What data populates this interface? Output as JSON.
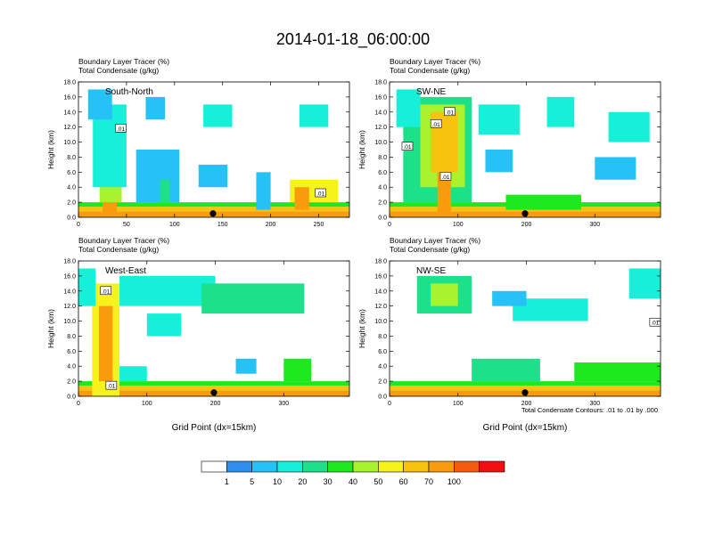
{
  "figure": {
    "title": "2014-01-18_06:00:00",
    "field_label": "Boundary Layer Tracer",
    "field_units": "(%)",
    "contour_label": "Total Condensate",
    "contour_units": "(g/kg)",
    "contour_note": "Total Condensate Contours: .01 to .01 by .000",
    "x_axis_label": "Grid Point (dx=15km)",
    "y_axis_label": "Height (km)"
  },
  "colorbar": {
    "labels": [
      "1",
      "5",
      "10",
      "20",
      "30",
      "40",
      "50",
      "60",
      "70",
      "100"
    ],
    "colors": [
      "#ffffff",
      "#2e8ff0",
      "#27c2f5",
      "#17f0d8",
      "#1ce08a",
      "#1ee81e",
      "#a8f32e",
      "#f5f21c",
      "#f7c30f",
      "#f89b0c",
      "#f55a0e",
      "#f01010"
    ]
  },
  "chart_data": [
    {
      "type": "heatmap",
      "panel": "South-North",
      "xlim": [
        0,
        282
      ],
      "xticks": [
        0,
        50,
        100,
        150,
        200,
        250
      ],
      "ylim": [
        0,
        18
      ],
      "yticks": [
        "0.0",
        "2.0",
        "4.0",
        "6.0",
        "8.0",
        "10.0",
        "12.0",
        "14.0",
        "16.0",
        "18.0"
      ],
      "marker_x": 140,
      "contour_labels": [
        {
          "text": ".01",
          "x": 44,
          "y": 11.8
        },
        {
          "text": ".01",
          "x": 252,
          "y": 3.2
        }
      ],
      "cells": [
        {
          "x": [
            0,
            282
          ],
          "y": [
            0,
            0.8
          ],
          "v": 95
        },
        {
          "x": [
            0,
            282
          ],
          "y": [
            0.8,
            1.4
          ],
          "v": 65
        },
        {
          "x": [
            0,
            282
          ],
          "y": [
            1.4,
            2.0
          ],
          "v": 35
        },
        {
          "x": [
            25,
            40
          ],
          "y": [
            0,
            9
          ],
          "v": 80
        },
        {
          "x": [
            22,
            45
          ],
          "y": [
            2,
            12
          ],
          "v": 40
        },
        {
          "x": [
            15,
            50
          ],
          "y": [
            4,
            15
          ],
          "v": 12
        },
        {
          "x": [
            10,
            35
          ],
          "y": [
            13,
            17
          ],
          "v": 6
        },
        {
          "x": [
            60,
            105
          ],
          "y": [
            2,
            9
          ],
          "v": 8
        },
        {
          "x": [
            85,
            95
          ],
          "y": [
            2,
            5
          ],
          "v": 25
        },
        {
          "x": [
            125,
            155
          ],
          "y": [
            4,
            7
          ],
          "v": 6
        },
        {
          "x": [
            185,
            200
          ],
          "y": [
            1,
            6
          ],
          "v": 8
        },
        {
          "x": [
            220,
            270
          ],
          "y": [
            2,
            5
          ],
          "v": 50
        },
        {
          "x": [
            225,
            240
          ],
          "y": [
            1,
            4
          ],
          "v": 75
        },
        {
          "x": [
            130,
            160
          ],
          "y": [
            12,
            15
          ],
          "v": 10
        },
        {
          "x": [
            230,
            260
          ],
          "y": [
            12,
            15
          ],
          "v": 12
        },
        {
          "x": [
            70,
            90
          ],
          "y": [
            13,
            16
          ],
          "v": 8
        }
      ]
    },
    {
      "type": "heatmap",
      "panel": "SW-NE",
      "xlim": [
        0,
        396
      ],
      "xticks": [
        0,
        100,
        200,
        300
      ],
      "ylim": [
        0,
        18
      ],
      "yticks": [
        "0.0",
        "2.0",
        "4.0",
        "6.0",
        "8.0",
        "10.0",
        "12.0",
        "14.0",
        "16.0",
        "18.0"
      ],
      "marker_x": 198,
      "contour_labels": [
        {
          "text": ".01",
          "x": 88,
          "y": 14
        },
        {
          "text": ".01",
          "x": 68,
          "y": 12.4
        },
        {
          "text": ".01",
          "x": 26,
          "y": 9.4
        },
        {
          "text": ".01",
          "x": 82,
          "y": 5.4
        }
      ],
      "cells": [
        {
          "x": [
            0,
            396
          ],
          "y": [
            0,
            0.8
          ],
          "v": 95
        },
        {
          "x": [
            0,
            396
          ],
          "y": [
            0.8,
            1.4
          ],
          "v": 65
        },
        {
          "x": [
            0,
            396
          ],
          "y": [
            1.4,
            2.0
          ],
          "v": 35
        },
        {
          "x": [
            20,
            120
          ],
          "y": [
            2,
            16
          ],
          "v": 25
        },
        {
          "x": [
            45,
            110
          ],
          "y": [
            4,
            15
          ],
          "v": 45
        },
        {
          "x": [
            60,
            100
          ],
          "y": [
            6,
            14
          ],
          "v": 60
        },
        {
          "x": [
            70,
            90
          ],
          "y": [
            0,
            6
          ],
          "v": 85
        },
        {
          "x": [
            10,
            45
          ],
          "y": [
            12,
            17
          ],
          "v": 10
        },
        {
          "x": [
            130,
            190
          ],
          "y": [
            11,
            15
          ],
          "v": 15
        },
        {
          "x": [
            140,
            180
          ],
          "y": [
            6,
            9
          ],
          "v": 8
        },
        {
          "x": [
            170,
            280
          ],
          "y": [
            1,
            3
          ],
          "v": 30
        },
        {
          "x": [
            230,
            270
          ],
          "y": [
            12,
            16
          ],
          "v": 12
        },
        {
          "x": [
            320,
            380
          ],
          "y": [
            10,
            14
          ],
          "v": 12
        },
        {
          "x": [
            300,
            360
          ],
          "y": [
            5,
            8
          ],
          "v": 7
        }
      ]
    },
    {
      "type": "heatmap",
      "panel": "West-East",
      "xlim": [
        0,
        396
      ],
      "xticks": [
        0,
        100,
        200,
        300
      ],
      "ylim": [
        0,
        18
      ],
      "yticks": [
        "0.0",
        "2.0",
        "4.0",
        "6.0",
        "8.0",
        "10.0",
        "12.0",
        "14.0",
        "16.0",
        "18.0"
      ],
      "marker_x": 198,
      "contour_labels": [
        {
          "text": ".01",
          "x": 40,
          "y": 14
        },
        {
          "text": ".01",
          "x": 48,
          "y": 1.4
        }
      ],
      "cells": [
        {
          "x": [
            0,
            396
          ],
          "y": [
            0,
            0.8
          ],
          "v": 95
        },
        {
          "x": [
            0,
            396
          ],
          "y": [
            0.8,
            1.4
          ],
          "v": 65
        },
        {
          "x": [
            0,
            396
          ],
          "y": [
            1.4,
            2.0
          ],
          "v": 35
        },
        {
          "x": [
            20,
            60
          ],
          "y": [
            0,
            15
          ],
          "v": 50
        },
        {
          "x": [
            30,
            50
          ],
          "y": [
            2,
            12
          ],
          "v": 75
        },
        {
          "x": [
            0,
            25
          ],
          "y": [
            12,
            17
          ],
          "v": 15
        },
        {
          "x": [
            60,
            200
          ],
          "y": [
            12,
            16
          ],
          "v": 12
        },
        {
          "x": [
            180,
            330
          ],
          "y": [
            11,
            15
          ],
          "v": 20
        },
        {
          "x": [
            100,
            150
          ],
          "y": [
            8,
            11
          ],
          "v": 10
        },
        {
          "x": [
            300,
            340
          ],
          "y": [
            2,
            5
          ],
          "v": 30
        },
        {
          "x": [
            60,
            100
          ],
          "y": [
            2,
            4
          ],
          "v": 15
        },
        {
          "x": [
            230,
            260
          ],
          "y": [
            3,
            5
          ],
          "v": 8
        }
      ]
    },
    {
      "type": "heatmap",
      "panel": "NW-SE",
      "xlim": [
        0,
        396
      ],
      "xticks": [
        0,
        100,
        200,
        300
      ],
      "ylim": [
        0,
        18
      ],
      "yticks": [
        "0.0",
        "2.0",
        "4.0",
        "6.0",
        "8.0",
        "10.0",
        "12.0",
        "14.0",
        "16.0",
        "18.0"
      ],
      "marker_x": 198,
      "contour_labels": [
        {
          "text": ".01",
          "x": 388,
          "y": 9.8
        }
      ],
      "cells": [
        {
          "x": [
            0,
            396
          ],
          "y": [
            0,
            0.8
          ],
          "v": 95
        },
        {
          "x": [
            0,
            396
          ],
          "y": [
            0.8,
            1.4
          ],
          "v": 65
        },
        {
          "x": [
            0,
            396
          ],
          "y": [
            1.4,
            2.0
          ],
          "v": 35
        },
        {
          "x": [
            40,
            120
          ],
          "y": [
            11,
            16
          ],
          "v": 25
        },
        {
          "x": [
            60,
            100
          ],
          "y": [
            12,
            15
          ],
          "v": 45
        },
        {
          "x": [
            180,
            290
          ],
          "y": [
            10,
            13
          ],
          "v": 15
        },
        {
          "x": [
            120,
            220
          ],
          "y": [
            2,
            5
          ],
          "v": 20
        },
        {
          "x": [
            270,
            396
          ],
          "y": [
            2,
            4.5
          ],
          "v": 30
        },
        {
          "x": [
            350,
            396
          ],
          "y": [
            13,
            17
          ],
          "v": 12
        },
        {
          "x": [
            150,
            200
          ],
          "y": [
            12,
            14
          ],
          "v": 8
        }
      ]
    }
  ]
}
